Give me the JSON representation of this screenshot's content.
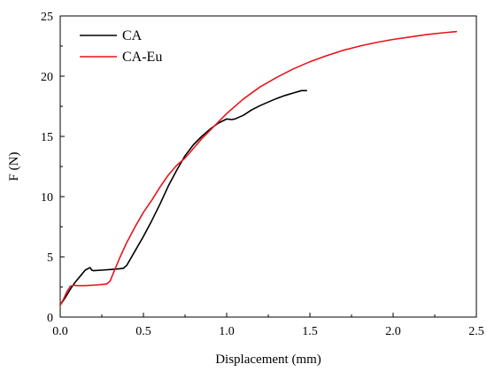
{
  "chart_data": {
    "type": "line",
    "title": "",
    "xlabel": "Displacement (mm)",
    "ylabel": "F (N)",
    "xlim": [
      0.0,
      2.5
    ],
    "ylim": [
      0,
      25
    ],
    "x_ticks": [
      "0.0",
      "0.5",
      "1.0",
      "1.5",
      "2.0",
      "2.5"
    ],
    "y_ticks": [
      "0",
      "5",
      "10",
      "15",
      "20",
      "25"
    ],
    "grid": false,
    "legend_position": "top-left",
    "series": [
      {
        "name": "CA",
        "color": "#000000",
        "x": [
          0.0,
          0.03,
          0.06,
          0.09,
          0.12,
          0.15,
          0.17,
          0.18,
          0.19,
          0.2,
          0.25,
          0.3,
          0.35,
          0.38,
          0.4,
          0.45,
          0.5,
          0.55,
          0.6,
          0.65,
          0.7,
          0.75,
          0.8,
          0.85,
          0.9,
          0.95,
          1.0,
          1.03,
          1.05,
          1.1,
          1.15,
          1.2,
          1.25,
          1.3,
          1.35,
          1.4,
          1.45,
          1.48
        ],
        "y": [
          1.0,
          1.6,
          2.3,
          2.9,
          3.4,
          3.9,
          4.05,
          4.1,
          3.9,
          3.85,
          3.9,
          3.95,
          4.0,
          4.05,
          4.3,
          5.5,
          6.7,
          8.0,
          9.4,
          10.9,
          12.2,
          13.4,
          14.3,
          15.0,
          15.6,
          16.1,
          16.45,
          16.4,
          16.45,
          16.75,
          17.2,
          17.55,
          17.85,
          18.15,
          18.4,
          18.6,
          18.8,
          18.8
        ]
      },
      {
        "name": "CA-Eu",
        "color": "#e8141c",
        "x": [
          0.0,
          0.02,
          0.04,
          0.06,
          0.08,
          0.1,
          0.15,
          0.2,
          0.25,
          0.28,
          0.3,
          0.33,
          0.36,
          0.4,
          0.45,
          0.5,
          0.55,
          0.6,
          0.65,
          0.7,
          0.75,
          0.8,
          0.85,
          0.9,
          0.95,
          1.0,
          1.1,
          1.2,
          1.3,
          1.4,
          1.5,
          1.6,
          1.7,
          1.8,
          1.9,
          2.0,
          2.1,
          2.2,
          2.3,
          2.38
        ],
        "y": [
          1.0,
          1.5,
          2.1,
          2.55,
          2.65,
          2.6,
          2.6,
          2.65,
          2.7,
          2.75,
          3.0,
          4.0,
          5.0,
          6.2,
          7.5,
          8.7,
          9.7,
          10.8,
          11.8,
          12.6,
          13.2,
          14.0,
          14.8,
          15.5,
          16.2,
          16.9,
          18.1,
          19.1,
          19.9,
          20.6,
          21.2,
          21.7,
          22.15,
          22.5,
          22.8,
          23.05,
          23.25,
          23.45,
          23.6,
          23.7
        ]
      }
    ]
  }
}
